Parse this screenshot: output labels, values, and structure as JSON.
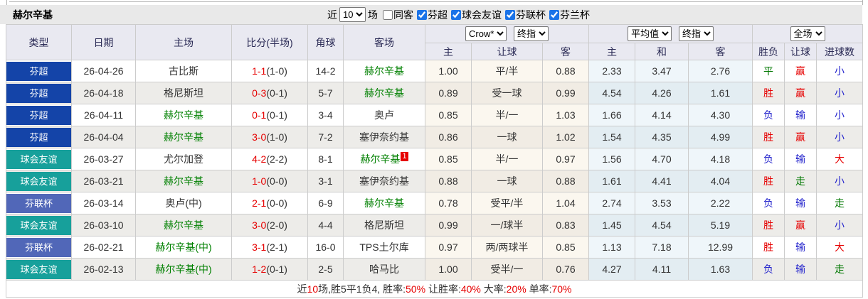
{
  "title": "赫尔辛基",
  "controls": {
    "near_label": "近",
    "recent_count": "10",
    "games_label": "场",
    "same_away": {
      "label": "同客",
      "checked": false
    },
    "league_filters": [
      {
        "label": "芬超",
        "checked": true
      },
      {
        "label": "球会友谊",
        "checked": true
      },
      {
        "label": "芬联杯",
        "checked": true
      },
      {
        "label": "芬兰杯",
        "checked": true
      }
    ]
  },
  "header": {
    "col_type": "类型",
    "col_date": "日期",
    "col_home": "主场",
    "col_score": "比分(半场)",
    "col_corner": "角球",
    "col_away": "客场",
    "selects": {
      "company": "Crow*",
      "company_time": "终指",
      "avg": "平均值",
      "avg_time": "终指",
      "scope": "全场"
    },
    "sub": {
      "home": "主",
      "handicap": "让球",
      "away": "客",
      "avg_home": "主",
      "avg_draw": "和",
      "avg_away": "客",
      "result": "胜负",
      "handicap_result": "让球",
      "goals": "进球数"
    }
  },
  "league_colors": {
    "芬超": "#1444a8",
    "球会友谊": "#17a09b",
    "芬联杯": "#5167b8"
  },
  "outcome_colors": {
    "胜": "c-red",
    "平": "c-green",
    "负": "c-blue",
    "赢": "c-red",
    "输": "c-blue",
    "走": "c-green",
    "大": "c-red",
    "小": "c-blue"
  },
  "colors": {
    "score": "#e60000",
    "self_team": "#008000",
    "away_flag_bg": "#e60000",
    "checkbox_accent": "#1a73e8"
  },
  "rows": [
    {
      "league": "芬超",
      "date": "26-04-26",
      "home": "古比斯",
      "home_is_self": false,
      "score": "1-1",
      "half": "(1-0)",
      "corners": "14-2",
      "away": "赫尔辛基",
      "away_is_self": true,
      "away_flag": "",
      "odds": [
        "1.00",
        "平/半",
        "0.88"
      ],
      "avg": [
        "2.33",
        "3.47",
        "2.76"
      ],
      "outcome": [
        "平",
        "赢",
        "小"
      ]
    },
    {
      "league": "芬超",
      "date": "26-04-18",
      "home": "格尼斯坦",
      "home_is_self": false,
      "score": "0-3",
      "half": "(0-1)",
      "corners": "5-7",
      "away": "赫尔辛基",
      "away_is_self": true,
      "away_flag": "",
      "odds": [
        "0.89",
        "受一球",
        "0.99"
      ],
      "avg": [
        "4.54",
        "4.26",
        "1.61"
      ],
      "outcome": [
        "胜",
        "赢",
        "小"
      ]
    },
    {
      "league": "芬超",
      "date": "26-04-11",
      "home": "赫尔辛基",
      "home_is_self": true,
      "score": "0-1",
      "half": "(0-1)",
      "corners": "3-4",
      "away": "奥卢",
      "away_is_self": false,
      "away_flag": "",
      "odds": [
        "0.85",
        "半/一",
        "1.03"
      ],
      "avg": [
        "1.66",
        "4.14",
        "4.30"
      ],
      "outcome": [
        "负",
        "输",
        "小"
      ]
    },
    {
      "league": "芬超",
      "date": "26-04-04",
      "home": "赫尔辛基",
      "home_is_self": true,
      "score": "3-0",
      "half": "(1-0)",
      "corners": "7-2",
      "away": "塞伊奈约基",
      "away_is_self": false,
      "away_flag": "",
      "odds": [
        "0.86",
        "一球",
        "1.02"
      ],
      "avg": [
        "1.54",
        "4.35",
        "4.99"
      ],
      "outcome": [
        "胜",
        "赢",
        "小"
      ]
    },
    {
      "league": "球会友谊",
      "date": "26-03-27",
      "home": "尤尔加登",
      "home_is_self": false,
      "score": "4-2",
      "half": "(2-2)",
      "corners": "8-1",
      "away": "赫尔辛基",
      "away_is_self": true,
      "away_flag": "1",
      "odds": [
        "0.85",
        "半/一",
        "0.97"
      ],
      "avg": [
        "1.56",
        "4.70",
        "4.18"
      ],
      "outcome": [
        "负",
        "输",
        "大"
      ]
    },
    {
      "league": "球会友谊",
      "date": "26-03-21",
      "home": "赫尔辛基",
      "home_is_self": true,
      "score": "1-0",
      "half": "(0-0)",
      "corners": "3-1",
      "away": "塞伊奈约基",
      "away_is_self": false,
      "away_flag": "",
      "odds": [
        "0.88",
        "一球",
        "0.88"
      ],
      "avg": [
        "1.61",
        "4.41",
        "4.04"
      ],
      "outcome": [
        "胜",
        "走",
        "小"
      ]
    },
    {
      "league": "芬联杯",
      "date": "26-03-14",
      "home": "奥卢(中)",
      "home_is_self": false,
      "score": "2-1",
      "half": "(0-0)",
      "corners": "6-9",
      "away": "赫尔辛基",
      "away_is_self": true,
      "away_flag": "",
      "odds": [
        "0.78",
        "受平/半",
        "1.04"
      ],
      "avg": [
        "2.74",
        "3.53",
        "2.22"
      ],
      "outcome": [
        "负",
        "输",
        "走"
      ]
    },
    {
      "league": "球会友谊",
      "date": "26-03-10",
      "home": "赫尔辛基",
      "home_is_self": true,
      "score": "3-0",
      "half": "(2-0)",
      "corners": "4-4",
      "away": "格尼斯坦",
      "away_is_self": false,
      "away_flag": "",
      "odds": [
        "0.99",
        "一/球半",
        "0.83"
      ],
      "avg": [
        "1.45",
        "4.54",
        "5.19"
      ],
      "outcome": [
        "胜",
        "赢",
        "小"
      ]
    },
    {
      "league": "芬联杯",
      "date": "26-02-21",
      "home": "赫尔辛基(中)",
      "home_is_self": true,
      "score": "3-1",
      "half": "(2-1)",
      "corners": "16-0",
      "away": "TPS土尔库",
      "away_is_self": false,
      "away_flag": "",
      "odds": [
        "0.97",
        "两/两球半",
        "0.85"
      ],
      "avg": [
        "1.13",
        "7.18",
        "12.99"
      ],
      "outcome": [
        "胜",
        "输",
        "大"
      ]
    },
    {
      "league": "球会友谊",
      "date": "26-02-13",
      "home": "赫尔辛基(中)",
      "home_is_self": true,
      "score": "1-2",
      "half": "(0-1)",
      "corners": "2-5",
      "away": "哈马比",
      "away_is_self": false,
      "away_flag": "",
      "odds": [
        "1.00",
        "受半/一",
        "0.76"
      ],
      "avg": [
        "4.27",
        "4.11",
        "1.63"
      ],
      "outcome": [
        "负",
        "输",
        "走"
      ]
    }
  ],
  "footer": {
    "segments": [
      {
        "text": "近",
        "red": false
      },
      {
        "text": "10",
        "red": true
      },
      {
        "text": "场,胜5平1负4, 胜率:",
        "red": false
      },
      {
        "text": "50%",
        "red": true
      },
      {
        "text": " 让胜率:",
        "red": false
      },
      {
        "text": "40%",
        "red": true
      },
      {
        "text": " 大率:",
        "red": false
      },
      {
        "text": "20%",
        "red": true
      },
      {
        "text": " 单率:",
        "red": false
      },
      {
        "text": "70%",
        "red": true
      }
    ]
  }
}
